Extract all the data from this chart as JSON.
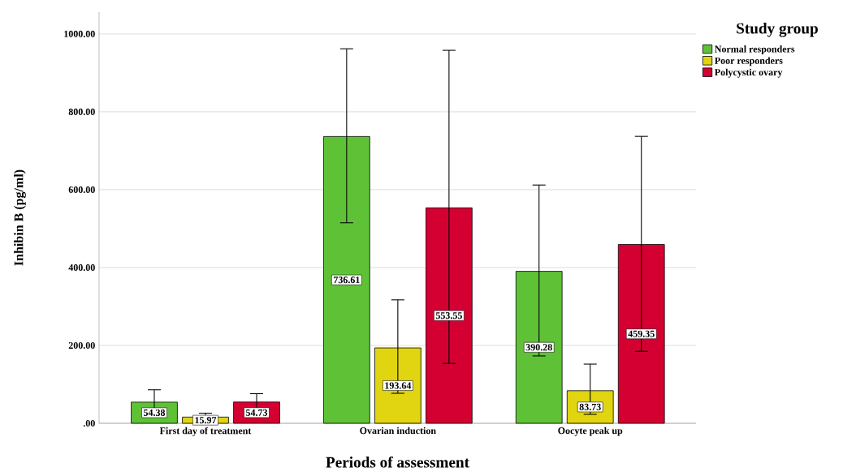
{
  "chart_data": {
    "type": "bar",
    "xlabel": "Periods of assessment",
    "ylabel": "Inhibin B (pg/ml)",
    "legend_title": "Study group",
    "categories": [
      "First day of treatment",
      "Ovarian induction",
      "Oocyte peak up"
    ],
    "series": [
      {
        "name": "Normal responders",
        "color": "#5fc236",
        "values": [
          54.38,
          736.61,
          390.28
        ],
        "errors": [
          [
            23,
            86
          ],
          [
            515,
            962
          ],
          [
            173,
            612
          ]
        ]
      },
      {
        "name": "Poor responders",
        "color": "#e0d510",
        "values": [
          15.97,
          193.64,
          83.73
        ],
        "errors": [
          [
            6,
            26
          ],
          [
            77,
            317
          ],
          [
            23,
            152
          ]
        ]
      },
      {
        "name": "Polycystic ovary",
        "color": "#d50032",
        "values": [
          54.73,
          553.55,
          459.35
        ],
        "errors": [
          [
            33,
            76
          ],
          [
            154,
            958
          ],
          [
            185,
            737
          ]
        ]
      }
    ],
    "ylim": [
      0,
      1056
    ],
    "yticks": [
      {
        "value": 0,
        "label": ".00"
      },
      {
        "value": 200,
        "label": "200.00"
      },
      {
        "value": 400,
        "label": "400.00"
      },
      {
        "value": 600,
        "label": "600.00"
      },
      {
        "value": 800,
        "label": "800.00"
      },
      {
        "value": 1000,
        "label": "1000.00"
      }
    ],
    "grid": "y",
    "legend": "top right",
    "data_labels": true
  }
}
